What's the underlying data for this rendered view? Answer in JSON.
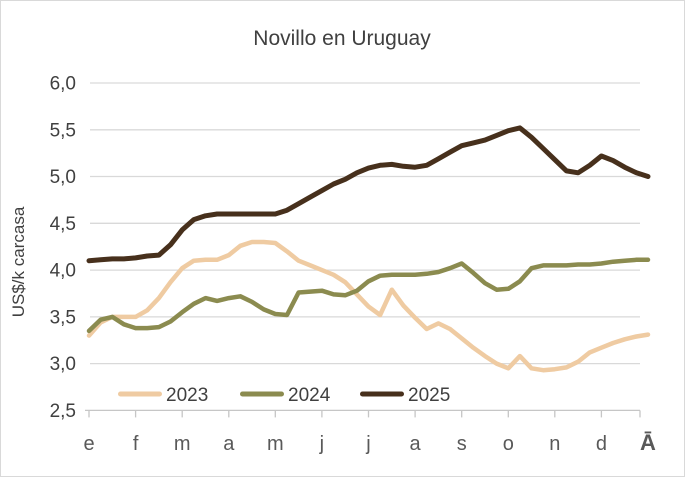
{
  "title": "Novillo en Uruguay",
  "y_axis": {
    "label": "US$/k carcasa",
    "ticks": [
      "6,0",
      "5,5",
      "5,0",
      "4,5",
      "4,0",
      "3,5",
      "3,0",
      "2,5"
    ]
  },
  "x_axis": {
    "labels": [
      "e",
      "f",
      "m",
      "a",
      "m",
      "j",
      "j",
      "a",
      "s",
      "o",
      "n",
      "d",
      "Ā"
    ],
    "last_label_color": "#4A2D17"
  },
  "legend": [
    {
      "label": "2023",
      "color": "#EFCBA2"
    },
    {
      "label": "2024",
      "color": "#8B8B4F"
    },
    {
      "label": "2025",
      "color": "#47301C"
    }
  ],
  "colors": {
    "grid": "#D9D9D9",
    "axis": "#C6C6C6",
    "title_text": "#404040",
    "month_text": "#595959",
    "frame_border": "#D9D9D9"
  },
  "chart_data": {
    "type": "line",
    "title": "Novillo en Uruguay",
    "xlabel": "",
    "ylabel": "US$/k carcasa",
    "x_categories": [
      "e",
      "f",
      "m",
      "a",
      "m",
      "j",
      "j",
      "a",
      "s",
      "o",
      "n",
      "d",
      "Ā"
    ],
    "points_per_month": 4,
    "ylim": [
      2.5,
      6.0
    ],
    "ytick_step": 0.5,
    "grid": "horizontal",
    "legend_position": "inside-bottom",
    "series": [
      {
        "name": "2023",
        "color": "#EFCBA2",
        "stroke_width": 4.5,
        "values": [
          3.3,
          3.44,
          3.5,
          3.5,
          3.5,
          3.57,
          3.7,
          3.87,
          4.02,
          4.1,
          4.11,
          4.11,
          4.16,
          4.26,
          4.3,
          4.3,
          4.29,
          4.2,
          4.1,
          4.05,
          4.0,
          3.95,
          3.87,
          3.74,
          3.61,
          3.52,
          3.79,
          3.62,
          3.49,
          3.37,
          3.43,
          3.37,
          3.27,
          3.17,
          3.08,
          3.0,
          2.95,
          3.08,
          2.95,
          2.93,
          2.94,
          2.96,
          3.02,
          3.12,
          3.17,
          3.22,
          3.26,
          3.29,
          3.31
        ]
      },
      {
        "name": "2024",
        "color": "#8B8B4F",
        "stroke_width": 4.5,
        "values": [
          3.35,
          3.47,
          3.5,
          3.42,
          3.38,
          3.38,
          3.39,
          3.45,
          3.55,
          3.64,
          3.7,
          3.67,
          3.7,
          3.72,
          3.66,
          3.58,
          3.53,
          3.52,
          3.76,
          3.77,
          3.78,
          3.74,
          3.73,
          3.78,
          3.88,
          3.94,
          3.95,
          3.95,
          3.95,
          3.96,
          3.98,
          4.02,
          4.07,
          3.97,
          3.86,
          3.79,
          3.8,
          3.88,
          4.02,
          4.05,
          4.05,
          4.05,
          4.06,
          4.06,
          4.07,
          4.09,
          4.1,
          4.11,
          4.11
        ]
      },
      {
        "name": "2025",
        "color": "#47301C",
        "stroke_width": 5,
        "values": [
          4.1,
          4.11,
          4.12,
          4.12,
          4.13,
          4.15,
          4.16,
          4.27,
          4.43,
          4.54,
          4.58,
          4.6,
          4.6,
          4.6,
          4.6,
          4.6,
          4.6,
          4.64,
          4.71,
          4.78,
          4.85,
          4.92,
          4.97,
          5.04,
          5.09,
          5.12,
          5.13,
          5.11,
          5.1,
          5.12,
          5.19,
          5.26,
          5.33,
          5.36,
          5.39,
          5.44,
          5.49,
          5.52,
          5.42,
          5.3,
          5.18,
          5.06,
          5.04,
          5.12,
          5.22,
          5.17,
          5.1,
          5.04,
          5.0
        ]
      }
    ]
  }
}
